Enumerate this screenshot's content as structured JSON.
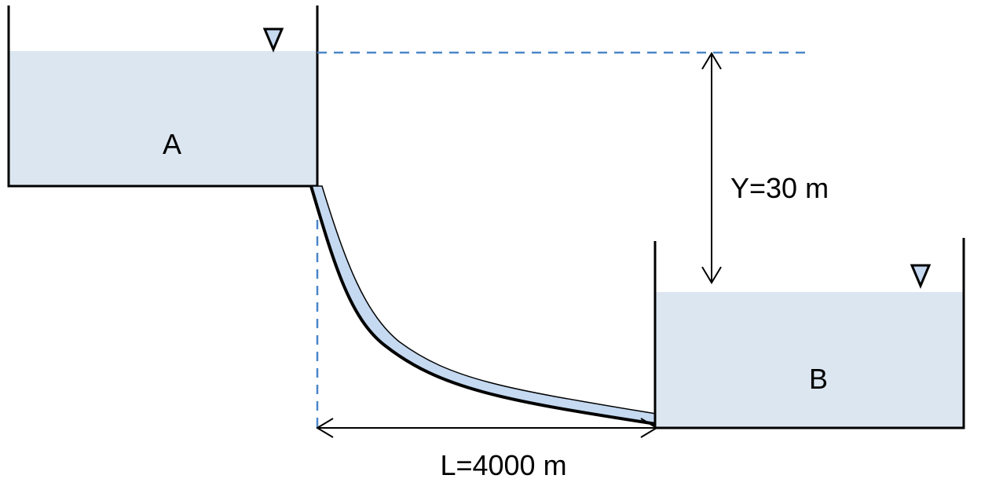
{
  "colors": {
    "water_fill": "#dce6f1",
    "pipe_fill": "#c5d9f1",
    "reference_line": "#4a86c8",
    "outline": "#000000"
  },
  "diagram": {
    "tank_a_label": "A",
    "tank_b_label": "B",
    "head_difference_label": "Y=30 m",
    "pipe_length_label": "L=4000 m",
    "water_surface_symbol": "inverted-triangle-icon"
  }
}
